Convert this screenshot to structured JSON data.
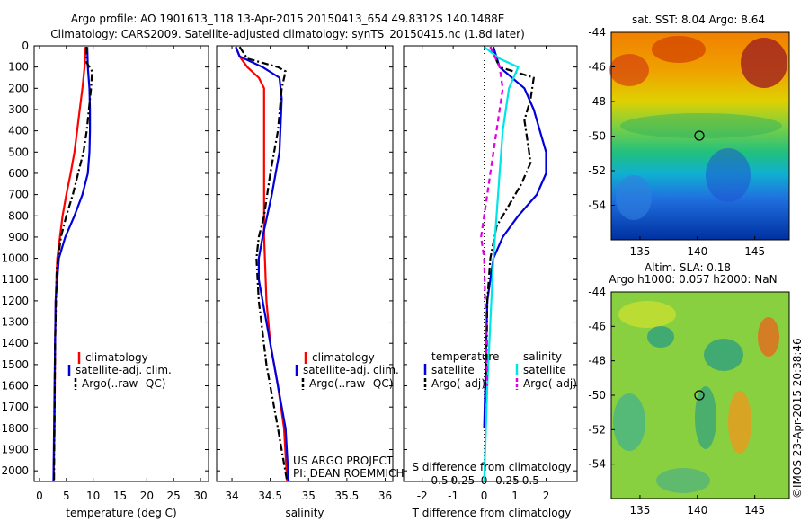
{
  "header": {
    "title_line1": "Argo profile: AO 1901613_118 13-Apr-2015 20150413_654 49.8312S 140.1488E",
    "title_line2": "Climatology: CARS2009. Satellite-adjusted climatology: synTS_20150415.nc (1.8d later)"
  },
  "colors": {
    "climatology": "#ff0000",
    "satellite": "#0000dd",
    "argo": "#000000",
    "salinity_satellite": "#00e5e5",
    "salinity_argo": "#e000e0"
  },
  "credits": {
    "project": "US ARGO PROJECT",
    "pi": "PI: DEAN ROEMMICH",
    "watermark": "©IMOS 23-Apr-2015 20:38:46"
  },
  "chart_data": [
    {
      "type": "line",
      "xlabel": "temperature (deg C)",
      "ylabel": "",
      "xlim": [
        -1,
        31.5
      ],
      "ylim": [
        2050,
        0
      ],
      "xticks": [
        0,
        5,
        10,
        15,
        20,
        25,
        30
      ],
      "yticks": [
        0,
        100,
        200,
        300,
        400,
        500,
        600,
        700,
        800,
        900,
        1000,
        1100,
        1200,
        1300,
        1400,
        1500,
        1600,
        1700,
        1800,
        1900,
        2000
      ],
      "legend_placement": "lower-center",
      "legend": [
        "climatology",
        "satellite-adj. clim.",
        "Argo(..raw -QC)"
      ],
      "series": [
        {
          "name": "climatology",
          "x": [
            8.6,
            8.4,
            8.0,
            7.5,
            7.0,
            6.5,
            5.8,
            5.0,
            4.3,
            3.8,
            3.3,
            3.0,
            2.9,
            2.8,
            2.6
          ],
          "y": [
            5,
            100,
            200,
            300,
            400,
            500,
            600,
            700,
            800,
            900,
            1000,
            1200,
            1400,
            1800,
            2050
          ]
        },
        {
          "name": "satellite-adj. clim.",
          "x": [
            8.9,
            9.0,
            9.3,
            9.4,
            9.4,
            9.3,
            9.0,
            8.0,
            6.5,
            4.8,
            3.6,
            3.0,
            2.8,
            2.6
          ],
          "y": [
            5,
            100,
            200,
            300,
            400,
            500,
            600,
            700,
            800,
            900,
            1000,
            1200,
            1600,
            2050
          ]
        },
        {
          "name": "Argo(..raw -QC)",
          "x": [
            8.7,
            8.8,
            9.8,
            9.6,
            9.2,
            8.8,
            8.2,
            7.2,
            6.2,
            5.0,
            4.0,
            3.2,
            2.9,
            2.7
          ],
          "y": [
            5,
            80,
            120,
            200,
            300,
            400,
            500,
            600,
            700,
            800,
            900,
            1050,
            1400,
            2050
          ]
        }
      ]
    },
    {
      "type": "line",
      "xlabel": "salinity",
      "ylabel": "",
      "xlim": [
        33.8,
        36.1
      ],
      "ylim": [
        2050,
        0
      ],
      "xticks": [
        34,
        34.5,
        35,
        35.5,
        36
      ],
      "legend_placement": "lower-center",
      "legend": [
        "climatology",
        "satellite-adj. clim.",
        "Argo(..raw -QC)"
      ],
      "series": [
        {
          "name": "climatology",
          "x": [
            34.05,
            34.1,
            34.2,
            34.35,
            34.42,
            34.42,
            34.42,
            34.42,
            34.42,
            34.43,
            34.45,
            34.5,
            34.6,
            34.68,
            34.72
          ],
          "y": [
            5,
            50,
            100,
            150,
            200,
            300,
            500,
            700,
            900,
            1000,
            1200,
            1400,
            1600,
            1800,
            2050
          ]
        },
        {
          "name": "satellite-adj. clim.",
          "x": [
            34.05,
            34.1,
            34.4,
            34.62,
            34.65,
            34.62,
            34.52,
            34.4,
            34.35,
            34.35,
            34.45,
            34.6,
            34.7,
            34.74
          ],
          "y": [
            5,
            50,
            100,
            150,
            250,
            500,
            700,
            900,
            1000,
            1100,
            1300,
            1600,
            1800,
            2050
          ]
        },
        {
          "name": "Argo(..raw -QC)",
          "x": [
            34.1,
            34.2,
            34.6,
            34.7,
            34.65,
            34.6,
            34.5,
            34.42,
            34.35,
            34.32,
            34.35,
            34.45,
            34.6,
            34.72
          ],
          "y": [
            5,
            60,
            100,
            120,
            200,
            400,
            600,
            800,
            900,
            1000,
            1200,
            1500,
            1800,
            2050
          ]
        }
      ]
    },
    {
      "type": "line",
      "xlabel": "T difference from climatology",
      "title": "S difference from climatology",
      "ylabel": "",
      "xlim": [
        -2.6,
        3.0
      ],
      "ylim": [
        2050,
        0
      ],
      "xticks": [
        -2,
        -1,
        0,
        1,
        2
      ],
      "s_ticks_label": [
        "-0.5",
        "-0.25",
        "0",
        "0.25",
        "0.5"
      ],
      "s_ticks_t": [
        -1.5,
        -0.75,
        0,
        0.75,
        1.5
      ],
      "legend_placement": "lower-center",
      "legend_groups": [
        "temperature",
        "salinity"
      ],
      "legend": [
        "satellite",
        "Argo(-adj)",
        "satellite",
        "Argo(-adj)"
      ],
      "series": [
        {
          "name": "satellite",
          "x": [
            0.3,
            0.5,
            1.3,
            1.6,
            1.8,
            2.0,
            2.0,
            1.7,
            1.1,
            0.6,
            0.3,
            0.1,
            0.0
          ],
          "y": [
            5,
            100,
            200,
            300,
            400,
            500,
            600,
            700,
            800,
            900,
            1000,
            1200,
            1800
          ]
        },
        {
          "name": "Argo(-adj)",
          "x": [
            0.2,
            0.5,
            1.6,
            1.5,
            1.3,
            1.4,
            1.5,
            1.2,
            0.8,
            0.4,
            0.2,
            0.1,
            0.05
          ],
          "y": [
            5,
            100,
            150,
            250,
            350,
            450,
            550,
            650,
            750,
            850,
            1000,
            1200,
            1800
          ]
        },
        {
          "name": "salinity satellite",
          "x": [
            0.0,
            0.5,
            1.1,
            0.8,
            0.6,
            0.5,
            0.4,
            0.3,
            0.2,
            0.1,
            0.0
          ],
          "y": [
            5,
            60,
            100,
            200,
            400,
            600,
            800,
            1000,
            1300,
            1600,
            2050
          ]
        },
        {
          "name": "salinity Argo(-adj)",
          "x": [
            0.2,
            0.5,
            0.6,
            0.4,
            0.2,
            0.0,
            -0.1,
            0.0,
            0.1
          ],
          "y": [
            5,
            100,
            200,
            400,
            600,
            800,
            900,
            1000,
            1600
          ]
        }
      ]
    },
    {
      "type": "heatmap",
      "title": "sat. SST: 8.04 Argo: 8.64",
      "xticks": [
        135,
        140,
        145
      ],
      "yticks": [
        -44,
        -46,
        -48,
        -50,
        -52,
        -54
      ],
      "xlim": [
        132.5,
        148
      ],
      "ylim": [
        -56,
        -44
      ]
    },
    {
      "type": "heatmap",
      "title_line1": "Altim. SLA: 0.18",
      "title_line2": "Argo h1000: 0.057 h2000: NaN",
      "xticks": [
        135,
        140,
        145
      ],
      "yticks": [
        -44,
        -46,
        -48,
        -50,
        -52,
        -54
      ],
      "xlim": [
        132.5,
        148
      ],
      "ylim": [
        -56,
        -44
      ]
    }
  ]
}
